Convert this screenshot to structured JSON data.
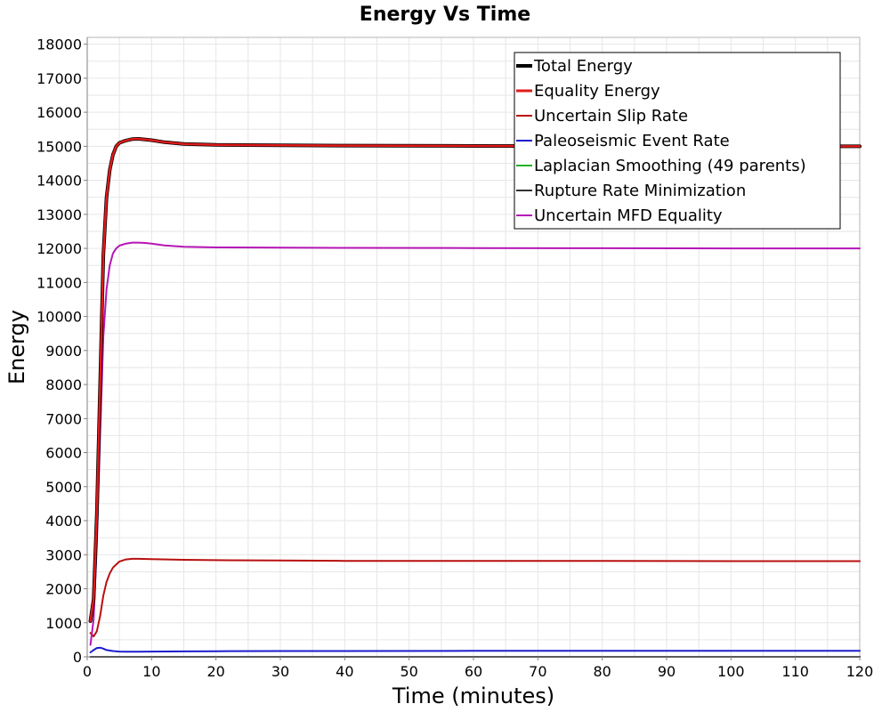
{
  "chart_data": {
    "type": "line",
    "title": "Energy Vs Time",
    "xlabel": "Time (minutes)",
    "ylabel": "Energy",
    "xlim": [
      0,
      120
    ],
    "ylim": [
      0,
      18200
    ],
    "xticks": [
      0,
      10,
      20,
      30,
      40,
      50,
      60,
      70,
      80,
      90,
      100,
      110,
      120
    ],
    "yticks": [
      0,
      1000,
      2000,
      3000,
      4000,
      5000,
      6000,
      7000,
      8000,
      9000,
      10000,
      11000,
      12000,
      13000,
      14000,
      15000,
      16000,
      17000,
      18000
    ],
    "grid": true,
    "legend_position": "top-right",
    "series": [
      {
        "name": "Total Energy",
        "color": "#000000",
        "x": [
          0.5,
          1,
          1.5,
          2,
          2.5,
          3,
          3.5,
          4,
          4.5,
          5,
          6,
          7,
          8,
          9,
          10,
          12,
          15,
          20,
          30,
          40,
          60,
          80,
          100,
          120
        ],
        "y": [
          1050,
          1700,
          4200,
          8000,
          11800,
          13500,
          14300,
          14750,
          15000,
          15100,
          15170,
          15210,
          15220,
          15200,
          15180,
          15120,
          15070,
          15040,
          15030,
          15020,
          15010,
          15005,
          15000,
          15000
        ]
      },
      {
        "name": "Equality Energy",
        "color": "#e11a1a",
        "x": [
          0.5,
          1,
          1.5,
          2,
          2.5,
          3,
          3.5,
          4,
          4.5,
          5,
          6,
          7,
          8,
          9,
          10,
          12,
          15,
          20,
          30,
          40,
          60,
          80,
          100,
          120
        ],
        "y": [
          1050,
          1700,
          4200,
          8000,
          11800,
          13500,
          14300,
          14750,
          15000,
          15100,
          15170,
          15210,
          15220,
          15200,
          15180,
          15120,
          15070,
          15040,
          15030,
          15020,
          15010,
          15005,
          15000,
          15000
        ]
      },
      {
        "name": "Uncertain Slip Rate",
        "color": "#b80f0f",
        "x": [
          0.5,
          1,
          1.5,
          2,
          2.5,
          3,
          3.5,
          4,
          5,
          6,
          7,
          8,
          10,
          15,
          20,
          30,
          40,
          60,
          80,
          100,
          120
        ],
        "y": [
          700,
          600,
          750,
          1200,
          1800,
          2200,
          2450,
          2620,
          2800,
          2860,
          2880,
          2880,
          2870,
          2850,
          2840,
          2830,
          2820,
          2820,
          2815,
          2810,
          2810
        ]
      },
      {
        "name": "Paleoseismic Event Rate",
        "color": "#1c1ccc",
        "x": [
          0.5,
          1,
          1.5,
          2,
          2.5,
          3,
          4,
          5,
          6,
          8,
          10,
          15,
          20,
          30,
          60,
          90,
          120
        ],
        "y": [
          130,
          200,
          260,
          270,
          240,
          200,
          170,
          155,
          150,
          150,
          155,
          160,
          165,
          170,
          175,
          175,
          175
        ]
      },
      {
        "name": "Laplacian Smoothing (49 parents)",
        "color": "#22b222",
        "x": [
          0.5,
          120
        ],
        "y": [
          0,
          0
        ]
      },
      {
        "name": "Rupture Rate Minimization",
        "color": "#333333",
        "x": [
          0.5,
          120
        ],
        "y": [
          0,
          0
        ]
      },
      {
        "name": "Uncertain MFD Equality",
        "color": "#b516b5",
        "x": [
          0.5,
          1,
          1.5,
          2,
          2.5,
          3,
          3.5,
          4,
          4.5,
          5,
          6,
          7,
          8,
          9,
          10,
          12,
          15,
          20,
          30,
          40,
          60,
          80,
          100,
          120
        ],
        "y": [
          350,
          1100,
          3300,
          6500,
          9400,
          10800,
          11500,
          11850,
          12000,
          12080,
          12140,
          12170,
          12170,
          12160,
          12140,
          12090,
          12050,
          12030,
          12020,
          12015,
          12010,
          12005,
          12000,
          12000
        ]
      }
    ]
  }
}
